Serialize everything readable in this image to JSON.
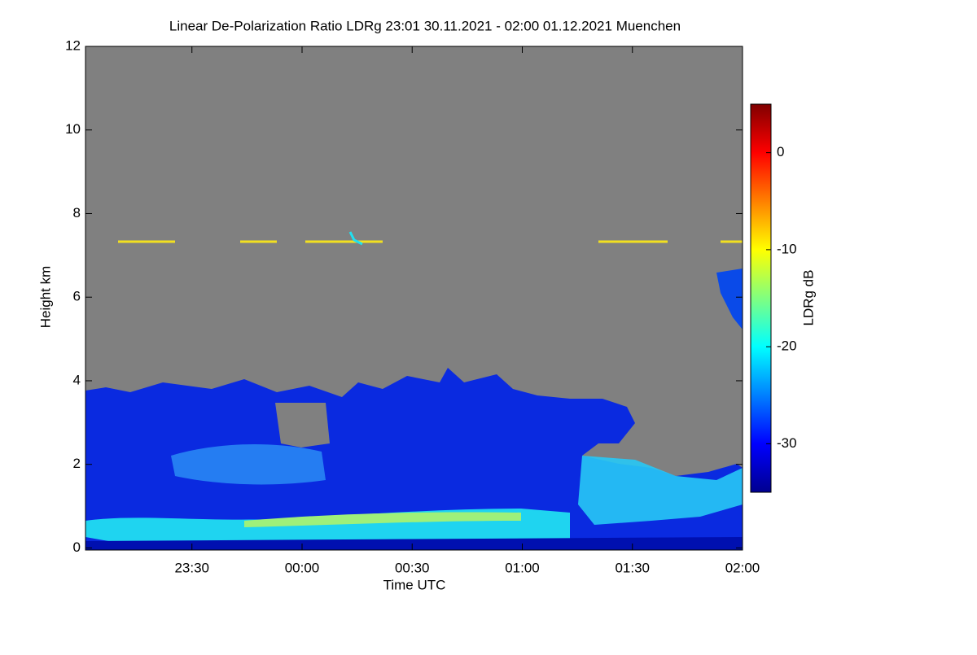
{
  "chart_data": {
    "type": "heatmap",
    "title": "Linear De-Polarization Ratio LDRg   23:01 30.11.2021 - 02:00 01.12.2021 Muenchen",
    "x_label": "Time UTC",
    "y_label": "Height km",
    "xlim": [
      23.0167,
      26.0
    ],
    "xticks": [
      {
        "value": 23.5,
        "label": "23:30"
      },
      {
        "value": 24.0,
        "label": "00:00"
      },
      {
        "value": 24.5,
        "label": "00:30"
      },
      {
        "value": 25.0,
        "label": "01:00"
      },
      {
        "value": 25.5,
        "label": "01:30"
      },
      {
        "value": 26.0,
        "label": "02:00"
      }
    ],
    "ylim": [
      -0.05,
      12
    ],
    "yticks": [
      0,
      2,
      4,
      6,
      8,
      10,
      12
    ],
    "colorbar": {
      "label": "LDRg dB",
      "clim": [
        -35,
        5
      ],
      "ticks": [
        0,
        -10,
        -20,
        -30
      ],
      "colors": [
        "#00008f",
        "#0000ff",
        "#0080ff",
        "#00ffff",
        "#80ff80",
        "#ffff00",
        "#ff8000",
        "#ff0000",
        "#800000"
      ]
    },
    "background": "#808080"
  }
}
